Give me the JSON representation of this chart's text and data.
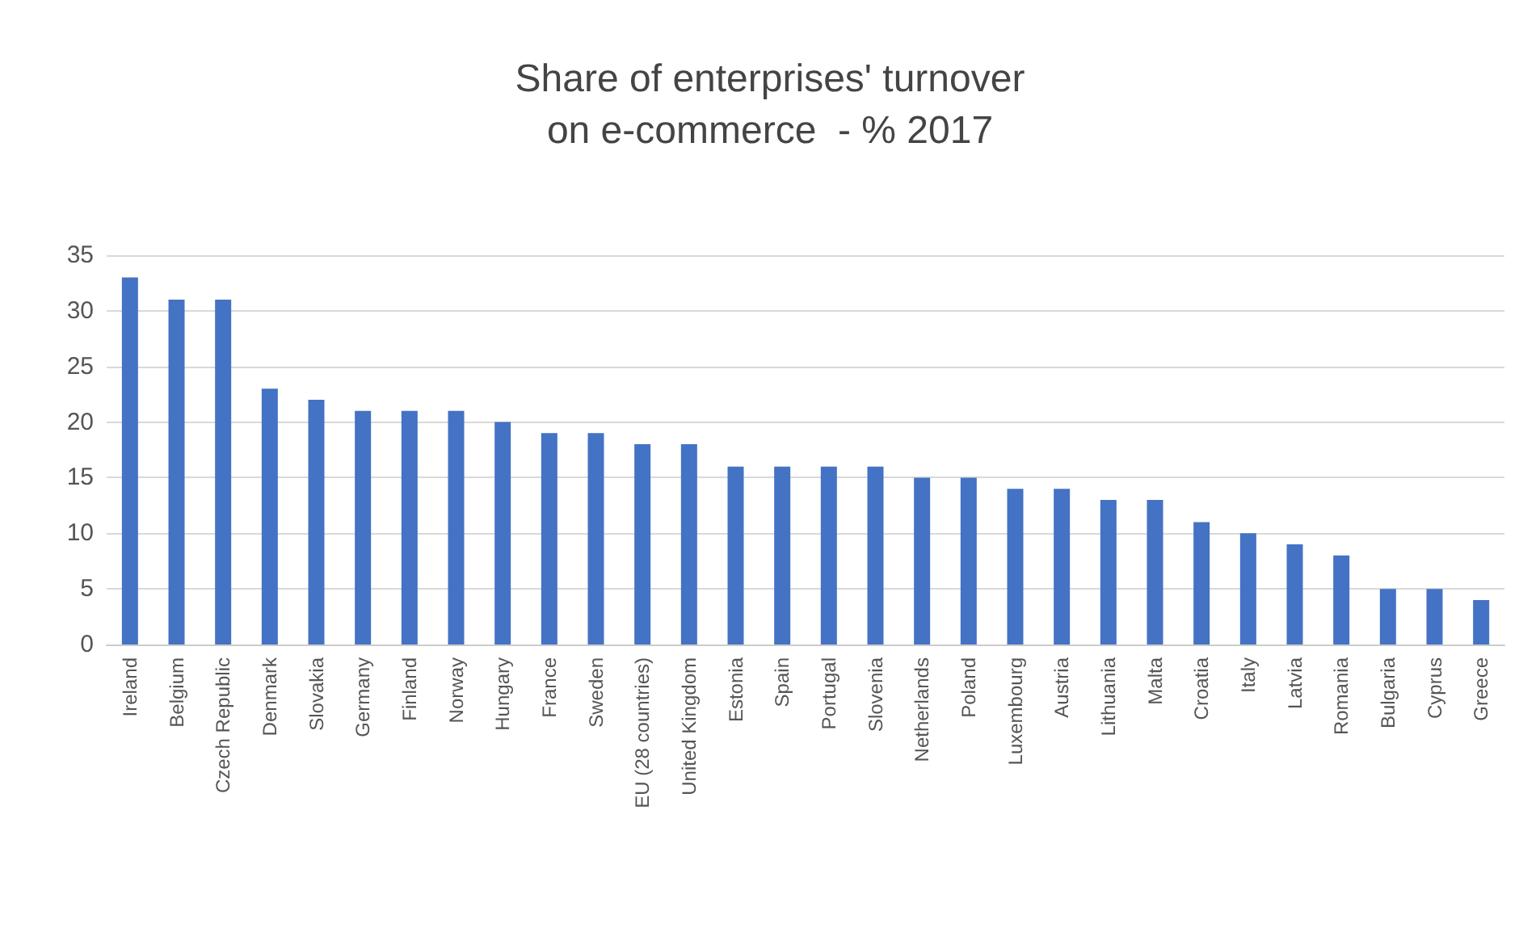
{
  "chart_data": {
    "type": "bar",
    "title": "Share of enterprises' turnover\non e-commerce  - % 2017",
    "categories": [
      "Ireland",
      "Belgium",
      "Czech Republic",
      "Denmark",
      "Slovakia",
      "Germany",
      "Finland",
      "Norway",
      "Hungary",
      "France",
      "Sweden",
      "EU (28 countries)",
      "United Kingdom",
      "Estonia",
      "Spain",
      "Portugal",
      "Slovenia",
      "Netherlands",
      "Poland",
      "Luxembourg",
      "Austria",
      "Lithuania",
      "Malta",
      "Croatia",
      "Italy",
      "Latvia",
      "Romania",
      "Bulgaria",
      "Cyprus",
      "Greece"
    ],
    "values": [
      33,
      31,
      31,
      23,
      22,
      21,
      21,
      21,
      20,
      19,
      19,
      18,
      18,
      16,
      16,
      16,
      16,
      15,
      15,
      14,
      14,
      13,
      13,
      11,
      10,
      9,
      8,
      5,
      5,
      4
    ],
    "color": "#4472c4",
    "ylim": [
      0,
      35
    ],
    "yticks": [
      0,
      5,
      10,
      15,
      20,
      25,
      30,
      35
    ],
    "grid": "y"
  }
}
